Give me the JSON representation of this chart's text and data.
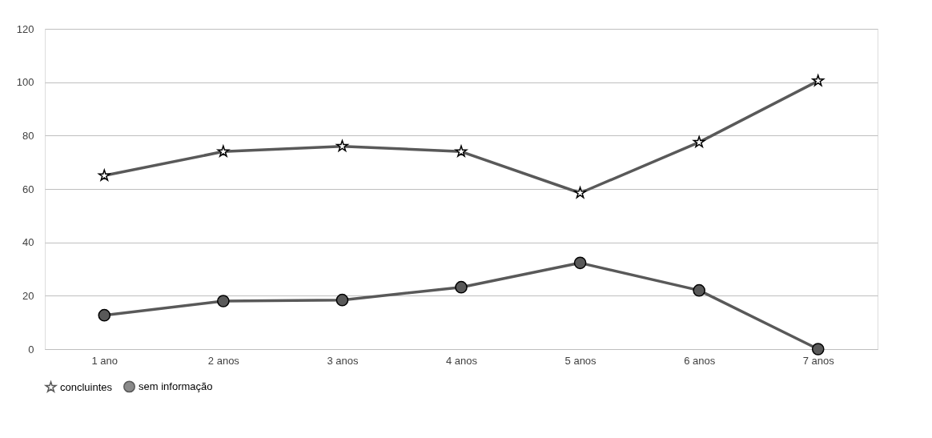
{
  "chart_data": {
    "type": "line",
    "categories": [
      "1 ano",
      "2 anos",
      "3 anos",
      "4 anos",
      "5 anos",
      "6 anos",
      "7 anos"
    ],
    "series": [
      {
        "name": "concluintes",
        "color": "#595959",
        "marker": "star",
        "values": [
          65,
          74,
          76,
          74,
          58.5,
          77.5,
          100.5
        ]
      },
      {
        "name": "sem informação",
        "color": "#595959",
        "marker": "circle",
        "values": [
          12.7,
          18,
          18.4,
          23.2,
          32.3,
          22,
          0
        ]
      }
    ],
    "ylim": [
      0,
      120
    ],
    "yticks": [
      0,
      20,
      40,
      60,
      80,
      100,
      120
    ],
    "grid": "y",
    "legend": "bottom",
    "line_style": "solid"
  }
}
